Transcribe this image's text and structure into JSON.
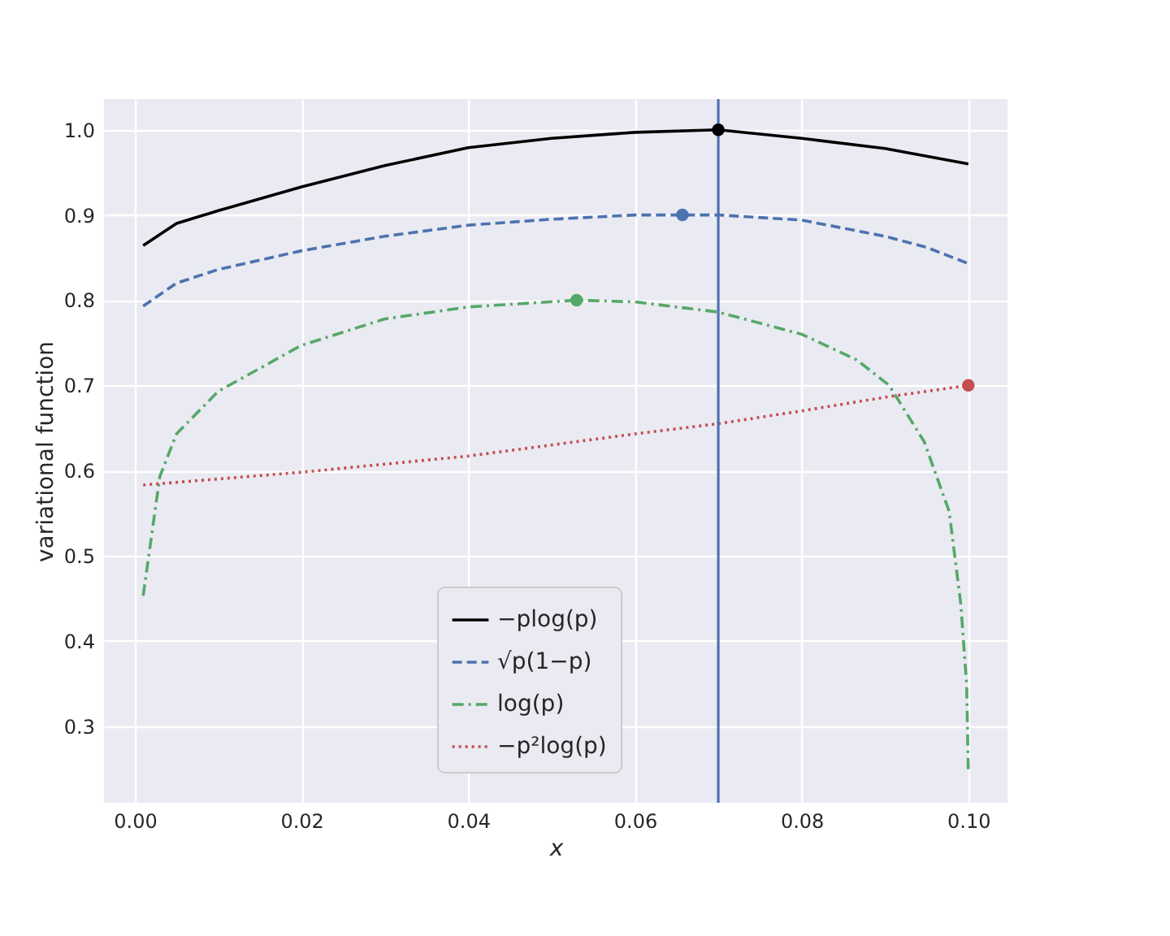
{
  "chart_data": {
    "type": "line",
    "xlabel": "x",
    "ylabel": "variational function",
    "xlim": [
      -0.0037,
      0.1047
    ],
    "ylim": [
      0.21,
      1.036
    ],
    "xticks": [
      {
        "value": 0,
        "label": "0.00"
      },
      {
        "value": 0.02,
        "label": "0.02"
      },
      {
        "value": 0.04,
        "label": "0.04"
      },
      {
        "value": 0.06,
        "label": "0.06"
      },
      {
        "value": 0.08,
        "label": "0.08"
      },
      {
        "value": 0.1,
        "label": "0.10"
      }
    ],
    "yticks": [
      0.3,
      0.4,
      0.5,
      0.6,
      0.7,
      0.8,
      0.9,
      {
        "value": 1,
        "label": "1.0"
      }
    ],
    "grid": true,
    "legend": "bottom",
    "marker": "none",
    "series": [
      {
        "name": "−plog(p)",
        "color": "#000000",
        "line_style": "solid",
        "x": [
          0.001,
          0.005,
          0.01,
          0.02,
          0.03,
          0.04,
          0.05,
          0.06,
          0.07,
          0.08,
          0.09,
          0.1
        ],
        "values": [
          0.864,
          0.89,
          0.905,
          0.933,
          0.958,
          0.979,
          0.99,
          0.997,
          1.0,
          0.99,
          0.978,
          0.96
        ]
      },
      {
        "name": "√p(1−p)",
        "color": "#4c72b0",
        "line_style": "dashed",
        "x": [
          0.001,
          0.005,
          0.01,
          0.02,
          0.03,
          0.04,
          0.05,
          0.06,
          0.0657,
          0.07,
          0.08,
          0.09,
          0.095,
          0.1
        ],
        "values": [
          0.793,
          0.82,
          0.836,
          0.858,
          0.875,
          0.888,
          0.895,
          0.9,
          0.9,
          0.9,
          0.894,
          0.875,
          0.862,
          0.843
        ]
      },
      {
        "name": "log(p)",
        "color": "#55a868",
        "line_style": "dashdot",
        "x": [
          0.001,
          0.003,
          0.005,
          0.01,
          0.02,
          0.03,
          0.04,
          0.053,
          0.06,
          0.07,
          0.08,
          0.0866,
          0.0905,
          0.0947,
          0.0977,
          0.0991,
          0.0998,
          0.1
        ],
        "values": [
          0.453,
          0.593,
          0.643,
          0.693,
          0.747,
          0.778,
          0.792,
          0.8,
          0.798,
          0.786,
          0.76,
          0.73,
          0.7,
          0.634,
          0.552,
          0.443,
          0.348,
          0.245
        ]
      },
      {
        "name": "−p²log(p)",
        "color": "#c44e52",
        "line_style": "dotted",
        "x": [
          0.001,
          0.02,
          0.04,
          0.06,
          0.07,
          0.08,
          0.09,
          0.1
        ],
        "values": [
          0.583,
          0.598,
          0.617,
          0.643,
          0.655,
          0.67,
          0.686,
          0.7
        ]
      },
      {
        "type": "scatter",
        "marker": "circle",
        "color": "#000000",
        "x": [
          0.07
        ],
        "values": [
          1.0
        ]
      },
      {
        "type": "scatter",
        "marker": "circle",
        "color": "#4c72b0",
        "x": [
          0.0657
        ],
        "values": [
          0.9
        ]
      },
      {
        "type": "scatter",
        "marker": "circle",
        "color": "#55a868",
        "x": [
          0.053
        ],
        "values": [
          0.8
        ]
      },
      {
        "type": "scatter",
        "marker": "circle",
        "color": "#c44e52",
        "x": [
          0.1
        ],
        "values": [
          0.7
        ]
      }
    ],
    "ref_lines": [
      {
        "axis": "x",
        "value": 0.07,
        "color": "#4c72b0",
        "line_style": "solid"
      }
    ]
  }
}
